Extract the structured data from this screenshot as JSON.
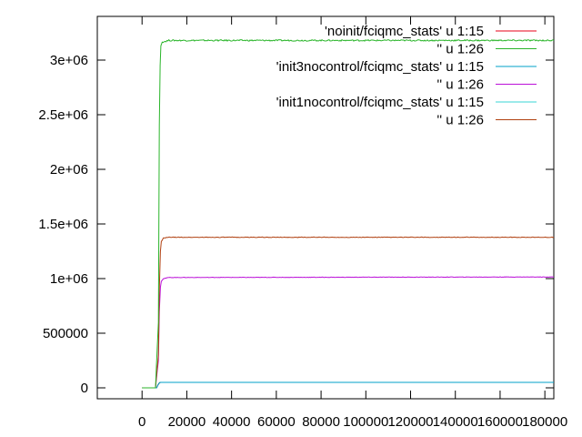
{
  "chart_data": {
    "type": "line",
    "title": "",
    "xlabel": "",
    "ylabel": "",
    "xlim": [
      -20000,
      184000
    ],
    "ylim": [
      -100000,
      3400000
    ],
    "grid": false,
    "legend_position": "top-right",
    "x_ticks": [
      {
        "value": 0,
        "label": "0"
      },
      {
        "value": 20000,
        "label": "20000"
      },
      {
        "value": 40000,
        "label": "40000"
      },
      {
        "value": 60000,
        "label": "60000"
      },
      {
        "value": 80000,
        "label": "80000"
      },
      {
        "value": 100000,
        "label": "100000"
      },
      {
        "value": 120000,
        "label": "120000"
      },
      {
        "value": 140000,
        "label": "140000"
      },
      {
        "value": 160000,
        "label": "160000"
      },
      {
        "value": 180000,
        "label": "180000"
      }
    ],
    "y_ticks": [
      {
        "value": 0,
        "label": "0"
      },
      {
        "value": 500000,
        "label": "500000"
      },
      {
        "value": 1000000,
        "label": "1e+06"
      },
      {
        "value": 1500000,
        "label": "1.5e+06"
      },
      {
        "value": 2000000,
        "label": "2e+06"
      },
      {
        "value": 2500000,
        "label": "2.5e+06"
      },
      {
        "value": 3000000,
        "label": "3e+06"
      }
    ],
    "series": [
      {
        "name": "'noinit/fciqmc_stats' u 1:15",
        "color": "#e8001a",
        "x": [
          0,
          6500,
          7200,
          7800,
          8200,
          10000,
          184000
        ],
        "y": [
          0,
          0,
          30000,
          47000,
          50000,
          50000,
          50000
        ]
      },
      {
        "name": "'' u 1:26",
        "color": "#2ab52a",
        "x": [
          0,
          6000,
          7300,
          7700,
          8100,
          8400,
          9000,
          12000,
          30000,
          184000
        ],
        "y": [
          0,
          0,
          600000,
          2400000,
          2950000,
          3130000,
          3165000,
          3180000,
          3180000,
          3180000
        ]
      },
      {
        "name": "'init3nocontrol/fciqmc_stats' u 1:15",
        "color": "#00a0c8",
        "x": [
          0,
          6500,
          7200,
          7800,
          8200,
          10000,
          184000
        ],
        "y": [
          0,
          0,
          30000,
          47000,
          50000,
          50000,
          50000
        ]
      },
      {
        "name": "'' u 1:26",
        "color": "#bb10d8",
        "x": [
          0,
          6000,
          7300,
          7700,
          8200,
          8600,
          9500,
          12000,
          184000
        ],
        "y": [
          0,
          0,
          250000,
          700000,
          920000,
          975000,
          1000000,
          1010000,
          1015000
        ]
      },
      {
        "name": "'init1nocontrol/fciqmc_stats' u 1:15",
        "color": "#3ad6d6",
        "x": [
          0,
          6500,
          7200,
          7800,
          8200,
          10000,
          184000
        ],
        "y": [
          0,
          0,
          30000,
          47000,
          50000,
          50000,
          50000
        ]
      },
      {
        "name": "'' u 1:26",
        "color": "#b04010",
        "x": [
          0,
          6000,
          7300,
          7700,
          8200,
          8600,
          9500,
          12000,
          184000
        ],
        "y": [
          0,
          0,
          300000,
          900000,
          1250000,
          1340000,
          1370000,
          1378000,
          1378000
        ]
      }
    ]
  }
}
